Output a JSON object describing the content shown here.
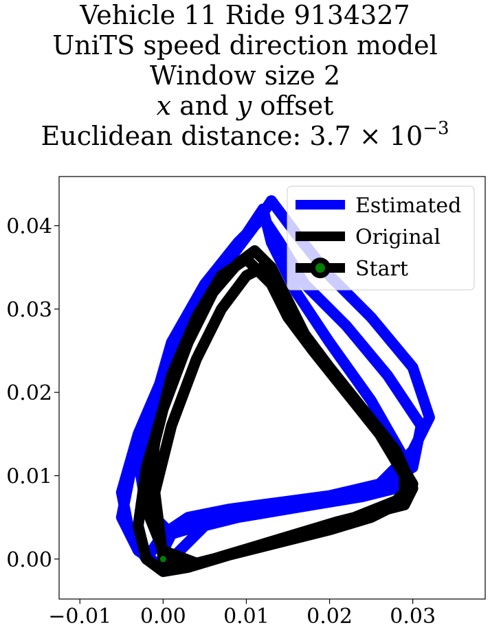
{
  "title": {
    "line1": "Vehicle 11 Ride 9134327",
    "line2": "UniTS speed direction model",
    "line3": "Window size 2",
    "line4_x": "x",
    "line4_mid": " and ",
    "line4_y": "y",
    "line4_end": " offset",
    "line5_prefix": "Euclidean distance: 3.7",
    "line5_times": " × 10",
    "line5_exp": "−3"
  },
  "chart_data": {
    "type": "line",
    "xlim": [
      -0.0125,
      0.0387
    ],
    "ylim": [
      -0.0048,
      0.0459
    ],
    "xticks": [
      -0.01,
      0.0,
      0.01,
      0.02,
      0.03
    ],
    "xtick_labels": [
      "−0.01",
      "0.00",
      "0.01",
      "0.02",
      "0.03"
    ],
    "yticks": [
      0.0,
      0.01,
      0.02,
      0.03,
      0.04
    ],
    "ytick_labels": [
      "0.00",
      "0.01",
      "0.02",
      "0.03",
      "0.04"
    ],
    "grid": false,
    "legend_position": "upper right",
    "series": [
      {
        "name": "Estimated",
        "color": "#0000ff",
        "x": [
          0.0,
          0.001,
          0.006,
          0.012,
          0.018,
          0.024,
          0.028,
          0.029,
          0.025,
          0.02,
          0.016,
          0.013,
          0.012,
          0.01,
          0.007,
          0.004,
          0.0,
          -0.003,
          -0.005,
          -0.004,
          -0.002,
          0.0,
          0.003,
          0.008,
          0.014,
          0.02,
          0.026,
          0.03,
          0.032,
          0.03,
          0.025,
          0.02,
          0.016,
          0.013,
          0.011,
          0.008,
          0.004,
          0.001,
          -0.002,
          -0.004,
          -0.005,
          -0.003,
          0.0,
          0.005,
          0.011,
          0.018,
          0.025,
          0.03,
          0.031,
          0.027,
          0.022,
          0.017,
          0.014,
          0.012,
          0.009,
          0.005,
          0.001,
          -0.001,
          -0.003,
          -0.002,
          0.001,
          0.006,
          0.015,
          0.023,
          0.028
        ],
        "y": [
          0.001,
          0.003,
          0.0045,
          0.0055,
          0.0065,
          0.0075,
          0.0085,
          0.012,
          0.019,
          0.026,
          0.032,
          0.038,
          0.042,
          0.039,
          0.035,
          0.029,
          0.022,
          0.015,
          0.008,
          0.003,
          0.0,
          0.003,
          0.005,
          0.006,
          0.0068,
          0.0076,
          0.009,
          0.013,
          0.017,
          0.023,
          0.029,
          0.034,
          0.039,
          0.043,
          0.04,
          0.036,
          0.03,
          0.024,
          0.017,
          0.01,
          0.005,
          0.001,
          -0.001,
          0.004,
          0.0055,
          0.0065,
          0.008,
          0.011,
          0.016,
          0.022,
          0.028,
          0.033,
          0.038,
          0.041,
          0.038,
          0.033,
          0.026,
          0.019,
          0.012,
          0.006,
          0.003,
          0.005,
          0.0065,
          0.008,
          0.0095
        ]
      },
      {
        "name": "Original",
        "color": "#000000",
        "x": [
          0.0,
          0.002,
          0.006,
          0.011,
          0.016,
          0.021,
          0.025,
          0.029,
          0.03,
          0.028,
          0.024,
          0.02,
          0.017,
          0.015,
          0.013,
          0.011,
          0.009,
          0.006,
          0.003,
          0.0,
          -0.002,
          -0.003,
          -0.002,
          0.0,
          0.003,
          0.008,
          0.014,
          0.02,
          0.025,
          0.029,
          0.029,
          0.026,
          0.022,
          0.018,
          0.015,
          0.013,
          0.01,
          0.007,
          0.004,
          0.001,
          -0.001,
          -0.002,
          0.0,
          0.004,
          0.01,
          0.017,
          0.023,
          0.028,
          0.03,
          0.027,
          0.023,
          0.019,
          0.016,
          0.014,
          0.012,
          0.01,
          0.007,
          0.004,
          0.001,
          -0.001,
          0.0
        ],
        "y": [
          0.0,
          -0.001,
          0.0,
          0.0015,
          0.003,
          0.0045,
          0.0055,
          0.0065,
          0.0085,
          0.013,
          0.018,
          0.023,
          0.027,
          0.031,
          0.035,
          0.037,
          0.0355,
          0.032,
          0.026,
          0.018,
          0.011,
          0.004,
          0.0,
          -0.0015,
          -0.001,
          0.0005,
          0.002,
          0.0035,
          0.005,
          0.007,
          0.01,
          0.015,
          0.02,
          0.025,
          0.029,
          0.033,
          0.036,
          0.034,
          0.029,
          0.022,
          0.014,
          0.006,
          0.001,
          -0.0005,
          0.001,
          0.003,
          0.005,
          0.007,
          0.009,
          0.014,
          0.019,
          0.024,
          0.028,
          0.032,
          0.035,
          0.034,
          0.03,
          0.024,
          0.016,
          0.008,
          0.0
        ]
      },
      {
        "name": "Start",
        "color": "#000000",
        "marker_color": "#008000",
        "x": [
          0.0
        ],
        "y": [
          0.0
        ]
      }
    ]
  }
}
